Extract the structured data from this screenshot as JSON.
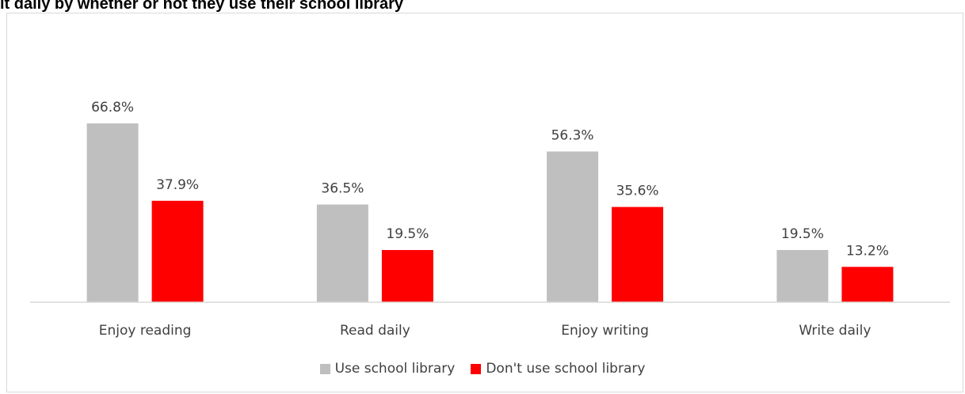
{
  "chart_data": {
    "type": "bar",
    "title": "it daily by whether or not they use their school library",
    "categories": [
      "Enjoy reading",
      "Read daily",
      "Enjoy writing",
      "Write daily"
    ],
    "series": [
      {
        "name": "Use school library",
        "values": [
          66.8,
          36.5,
          56.3,
          19.5
        ],
        "labels": [
          "66.8%",
          "36.5%",
          "56.3%",
          "19.5%"
        ],
        "color": "#bfbfbf"
      },
      {
        "name": "Don't use school library",
        "values": [
          37.9,
          19.5,
          35.6,
          13.2
        ],
        "labels": [
          "37.9%",
          "19.5%",
          "35.6%",
          "13.2%"
        ],
        "color": "#ff0000"
      }
    ],
    "ylim": [
      0,
      66.8
    ],
    "grid": false,
    "legend_position": "bottom"
  }
}
